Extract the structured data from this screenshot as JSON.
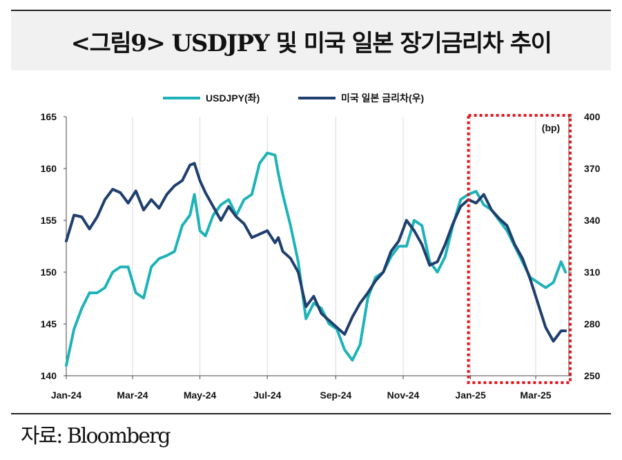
{
  "figure": {
    "title": "<그림9> USDJPY 및 미국 일본 장기금리차 추이",
    "source": "자료: Bloomberg"
  },
  "colors": {
    "usdjpy": "#1eb3b8",
    "spread": "#1f3f6e",
    "highlight_box": "#e0141b",
    "title_band": "#f1f1f1",
    "grid": "#d9d9d9"
  },
  "chart_data": {
    "type": "line",
    "x_axis": {
      "ticks": [
        "Jan-24",
        "Mar-24",
        "May-24",
        "Jul-24",
        "Sep-24",
        "Nov-24",
        "Jan-25",
        "Mar-25"
      ],
      "range": [
        "2024-01-01",
        "2025-03-31"
      ]
    },
    "y_left": {
      "ticks": [
        140,
        145,
        150,
        155,
        160,
        165
      ],
      "range": [
        140,
        165
      ]
    },
    "y_right": {
      "ticks": [
        250,
        280,
        310,
        340,
        370,
        400
      ],
      "range": [
        250,
        400
      ],
      "unit": "(bp)"
    },
    "legend_position": "top-center",
    "grid": "vertical",
    "highlight": {
      "from": "2025-01-01",
      "to": "2025-03-31",
      "style": "red dotted box"
    },
    "series": [
      {
        "name": "USDJPY(좌)",
        "axis": "left",
        "x": [
          "2024-01-01",
          "2024-01-08",
          "2024-01-15",
          "2024-01-22",
          "2024-01-29",
          "2024-02-05",
          "2024-02-12",
          "2024-02-19",
          "2024-02-26",
          "2024-03-04",
          "2024-03-11",
          "2024-03-18",
          "2024-03-25",
          "2024-04-01",
          "2024-04-08",
          "2024-04-15",
          "2024-04-22",
          "2024-04-26",
          "2024-05-01",
          "2024-05-06",
          "2024-05-13",
          "2024-05-20",
          "2024-05-27",
          "2024-06-03",
          "2024-06-10",
          "2024-06-17",
          "2024-06-24",
          "2024-07-01",
          "2024-07-08",
          "2024-07-11",
          "2024-07-15",
          "2024-07-22",
          "2024-07-29",
          "2024-08-05",
          "2024-08-12",
          "2024-08-19",
          "2024-08-26",
          "2024-09-02",
          "2024-09-09",
          "2024-09-16",
          "2024-09-23",
          "2024-09-30",
          "2024-10-07",
          "2024-10-14",
          "2024-10-21",
          "2024-10-28",
          "2024-11-04",
          "2024-11-11",
          "2024-11-18",
          "2024-11-25",
          "2024-12-02",
          "2024-12-09",
          "2024-12-16",
          "2024-12-23",
          "2024-12-30",
          "2025-01-06",
          "2025-01-13",
          "2025-01-20",
          "2025-01-27",
          "2025-02-03",
          "2025-02-10",
          "2025-02-17",
          "2025-02-24",
          "2025-03-03",
          "2025-03-10",
          "2025-03-17",
          "2025-03-24",
          "2025-03-28"
        ],
        "values": [
          141.0,
          144.5,
          146.5,
          148.0,
          148.0,
          148.5,
          150.0,
          150.5,
          150.5,
          148.0,
          147.5,
          150.5,
          151.3,
          151.6,
          152.0,
          154.5,
          155.5,
          157.5,
          154.0,
          153.5,
          155.5,
          156.5,
          157.0,
          155.5,
          157.0,
          157.5,
          160.5,
          161.5,
          161.3,
          159.5,
          157.5,
          154.5,
          151.0,
          145.5,
          147.0,
          146.5,
          145.0,
          144.5,
          142.5,
          141.5,
          143.0,
          147.5,
          149.5,
          150.0,
          151.5,
          152.5,
          152.5,
          155.0,
          154.5,
          151.0,
          150.0,
          151.5,
          154.5,
          157.0,
          157.5,
          157.8,
          156.5,
          156.0,
          155.0,
          154.0,
          152.5,
          151.0,
          149.5,
          149.0,
          148.5,
          149.0,
          151.0,
          150.0
        ]
      },
      {
        "name": "미국 일본 금리차(우)",
        "axis": "right",
        "x": [
          "2024-01-01",
          "2024-01-08",
          "2024-01-15",
          "2024-01-22",
          "2024-01-29",
          "2024-02-05",
          "2024-02-12",
          "2024-02-19",
          "2024-02-26",
          "2024-03-04",
          "2024-03-11",
          "2024-03-18",
          "2024-03-25",
          "2024-04-01",
          "2024-04-08",
          "2024-04-15",
          "2024-04-22",
          "2024-04-26",
          "2024-05-01",
          "2024-05-06",
          "2024-05-13",
          "2024-05-20",
          "2024-05-27",
          "2024-06-03",
          "2024-06-10",
          "2024-06-17",
          "2024-06-24",
          "2024-07-01",
          "2024-07-08",
          "2024-07-11",
          "2024-07-15",
          "2024-07-22",
          "2024-07-29",
          "2024-08-05",
          "2024-08-12",
          "2024-08-19",
          "2024-08-26",
          "2024-09-02",
          "2024-09-09",
          "2024-09-16",
          "2024-09-23",
          "2024-09-30",
          "2024-10-07",
          "2024-10-14",
          "2024-10-21",
          "2024-10-28",
          "2024-11-04",
          "2024-11-11",
          "2024-11-18",
          "2024-11-25",
          "2024-12-02",
          "2024-12-09",
          "2024-12-16",
          "2024-12-23",
          "2024-12-30",
          "2025-01-06",
          "2025-01-13",
          "2025-01-20",
          "2025-01-27",
          "2025-02-03",
          "2025-02-10",
          "2025-02-17",
          "2025-02-24",
          "2025-03-03",
          "2025-03-10",
          "2025-03-17",
          "2025-03-24",
          "2025-03-28"
        ],
        "values": [
          328,
          343,
          342,
          335,
          342,
          352,
          358,
          356,
          350,
          357,
          346,
          352,
          347,
          355,
          360,
          363,
          372,
          373,
          363,
          356,
          348,
          340,
          348,
          342,
          338,
          330,
          332,
          334,
          327,
          330,
          322,
          318,
          310,
          290,
          296,
          286,
          282,
          278,
          274,
          284,
          292,
          298,
          305,
          310,
          322,
          328,
          340,
          334,
          326,
          314,
          316,
          326,
          338,
          348,
          352,
          350,
          355,
          346,
          341,
          337,
          326,
          318,
          306,
          292,
          278,
          270,
          276,
          276
        ]
      }
    ]
  }
}
